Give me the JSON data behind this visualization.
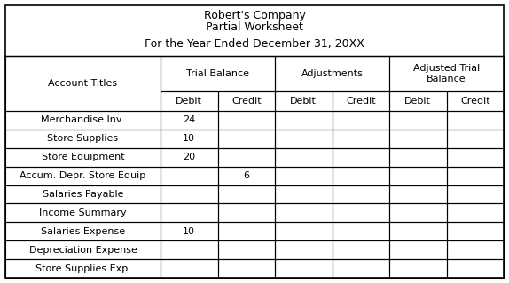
{
  "title_lines": [
    "Robert's Company",
    "Partial Worksheet",
    "For the Year Ended December 31, 20XX"
  ],
  "col_headers_row2": [
    "",
    "Debit",
    "Credit",
    "Debit",
    "Credit",
    "Debit",
    "Credit"
  ],
  "rows": [
    [
      "Merchandise Inv.",
      "24",
      "",
      "",
      "",
      "",
      ""
    ],
    [
      "Store Supplies",
      "10",
      "",
      "",
      "",
      "",
      ""
    ],
    [
      "Store Equipment",
      "20",
      "",
      "",
      "",
      "",
      ""
    ],
    [
      "Accum. Depr. Store Equip",
      "",
      "6",
      "",
      "",
      "",
      ""
    ],
    [
      "Salaries Payable",
      "",
      "",
      "",
      "",
      "",
      ""
    ],
    [
      "Income Summary",
      "",
      "",
      "",
      "",
      "",
      ""
    ],
    [
      "Salaries Expense",
      "10",
      "",
      "",
      "",
      "",
      ""
    ],
    [
      "Depreciation Expense",
      "",
      "",
      "",
      "",
      "",
      ""
    ],
    [
      "Store Supplies Exp.",
      "",
      "",
      "",
      "",
      "",
      ""
    ]
  ],
  "bg_color": "#ffffff",
  "font_size": 8.0,
  "header_font_size": 8.0,
  "title_font_size": 9.0
}
